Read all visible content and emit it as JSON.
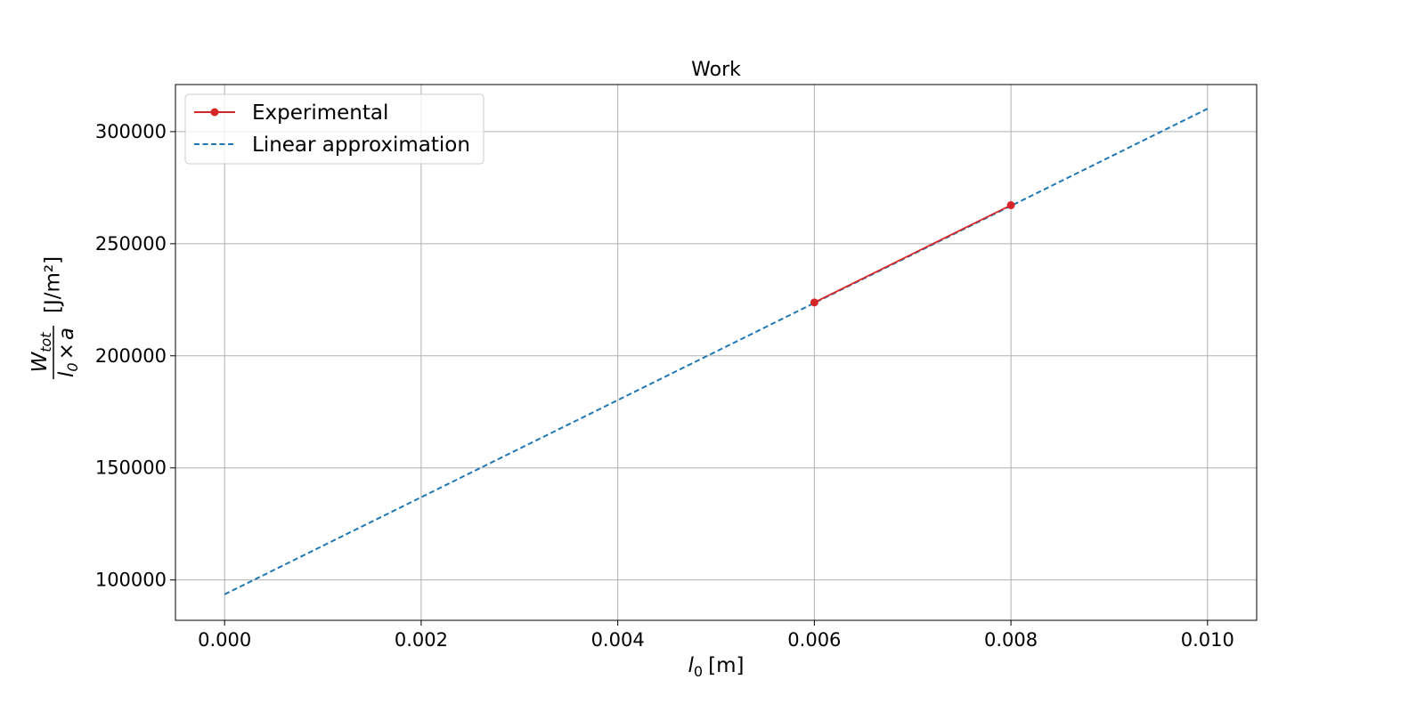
{
  "chart_data": {
    "type": "line",
    "title": "Work",
    "xlabel": {
      "var": "l",
      "sub": "0",
      "unit": "[m]"
    },
    "ylabel": {
      "numerator": {
        "var": "W",
        "sub": "tot"
      },
      "denominator": {
        "var": "l",
        "sub": "0",
        "times": "×",
        "var2": "a"
      },
      "unit": "[J/m²]"
    },
    "xlim": [
      -0.0005,
      0.0105
    ],
    "ylim": [
      82000,
      321000
    ],
    "xticks": [
      0.0,
      0.002,
      0.004,
      0.006,
      0.008,
      0.01
    ],
    "xtick_labels": [
      "0.000",
      "0.002",
      "0.004",
      "0.006",
      "0.008",
      "0.010"
    ],
    "yticks": [
      100000,
      150000,
      200000,
      250000,
      300000
    ],
    "ytick_labels": [
      "100000",
      "150000",
      "200000",
      "250000",
      "300000"
    ],
    "grid": true,
    "legend_position": "top-left",
    "series": [
      {
        "name": "Experimental",
        "style": "solid",
        "marker": "circle",
        "color": "#d62728",
        "x": [
          0.006,
          0.008
        ],
        "y": [
          223800,
          267200
        ]
      },
      {
        "name": "Linear approximation",
        "style": "dashed",
        "marker": "none",
        "color": "#1f77b4",
        "x": [
          0.0,
          0.01
        ],
        "y": [
          93600,
          310200
        ]
      }
    ]
  }
}
